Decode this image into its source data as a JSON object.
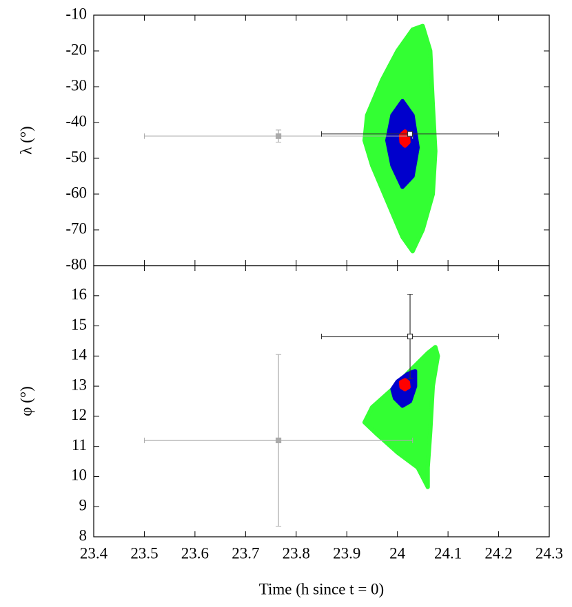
{
  "chart_data": [
    {
      "type": "scatter",
      "ylabel": "λ (°)",
      "xlim": [
        23.4,
        24.3
      ],
      "xticks": [
        23.4,
        23.5,
        23.6,
        23.7,
        23.8,
        23.9,
        24.0,
        24.1,
        24.2,
        24.3
      ],
      "ylim": [
        -80,
        -10
      ],
      "yticks": [
        -10,
        -20,
        -30,
        -40,
        -50,
        -60,
        -70,
        -80
      ],
      "regions": [
        {
          "color": "#33ff33",
          "x": [
            24.05,
            24.065,
            24.07,
            24.075,
            24.07,
            24.05,
            24.03,
            24.01,
            23.98,
            23.95,
            23.935,
            23.94,
            23.97,
            24.0,
            24.03
          ],
          "y": [
            -13,
            -20,
            -35,
            -48,
            -60,
            -70,
            -76,
            -72,
            -62,
            -52,
            -45,
            -38,
            -28,
            -20,
            -14
          ]
        },
        {
          "color": "#0000cc",
          "x": [
            24.01,
            24.03,
            24.04,
            24.03,
            24.01,
            23.99,
            23.98,
            23.99
          ],
          "y": [
            -34,
            -38,
            -47,
            -55,
            -58,
            -52,
            -45,
            -38
          ]
        },
        {
          "color": "#ff0000",
          "x": [
            24.015,
            24.021,
            24.022,
            24.015,
            24.008,
            24.007
          ],
          "y": [
            -42.5,
            -43.5,
            -45.5,
            -46.5,
            -45.5,
            -43.5
          ]
        }
      ],
      "points": [
        {
          "x": 23.765,
          "y": -43.8,
          "xerr": 0.265,
          "yerr": 1.7,
          "color": "#aaaaaa",
          "marker": "filled"
        },
        {
          "x": 24.025,
          "y": -43.2,
          "xerr": 0.175,
          "yerr": 0.3,
          "color": "#333333",
          "marker": "open"
        }
      ]
    },
    {
      "type": "scatter",
      "ylabel": "φ (°)",
      "xlabel": "Time (h since t = 0)",
      "xlim": [
        23.4,
        24.3
      ],
      "xticks": [
        23.4,
        23.5,
        23.6,
        23.7,
        23.8,
        23.9,
        24.0,
        24.1,
        24.2,
        24.3
      ],
      "ylim": [
        8,
        17
      ],
      "yticks": [
        8,
        9,
        10,
        11,
        12,
        13,
        14,
        15,
        16
      ],
      "regions": [
        {
          "color": "#33ff33",
          "x": [
            24.075,
            24.08,
            24.07,
            24.065,
            24.06,
            24.06,
            24.04,
            24.0,
            23.96,
            23.935,
            23.95,
            23.99,
            24.03,
            24.06
          ],
          "y": [
            14.3,
            14.0,
            13.0,
            11.5,
            10.3,
            9.65,
            10.3,
            10.8,
            11.4,
            11.8,
            12.3,
            12.9,
            13.6,
            14.1
          ]
        },
        {
          "color": "#0000cc",
          "x": [
            24.02,
            24.035,
            24.035,
            24.025,
            24.01,
            23.995,
            23.99,
            24.0
          ],
          "y": [
            13.4,
            13.5,
            13.0,
            12.5,
            12.35,
            12.6,
            12.9,
            13.15
          ]
        },
        {
          "color": "#ff0000",
          "x": [
            24.015,
            24.021,
            24.022,
            24.015,
            24.008,
            24.007
          ],
          "y": [
            13.2,
            13.13,
            12.97,
            12.9,
            12.97,
            13.13
          ]
        }
      ],
      "points": [
        {
          "x": 23.765,
          "y": 11.2,
          "xerr": 0.265,
          "yerr": 2.85,
          "color": "#aaaaaa",
          "marker": "filled"
        },
        {
          "x": 24.025,
          "y": 14.65,
          "xerr": 0.175,
          "yerr": 1.4,
          "color": "#333333",
          "marker": "open"
        }
      ]
    }
  ]
}
